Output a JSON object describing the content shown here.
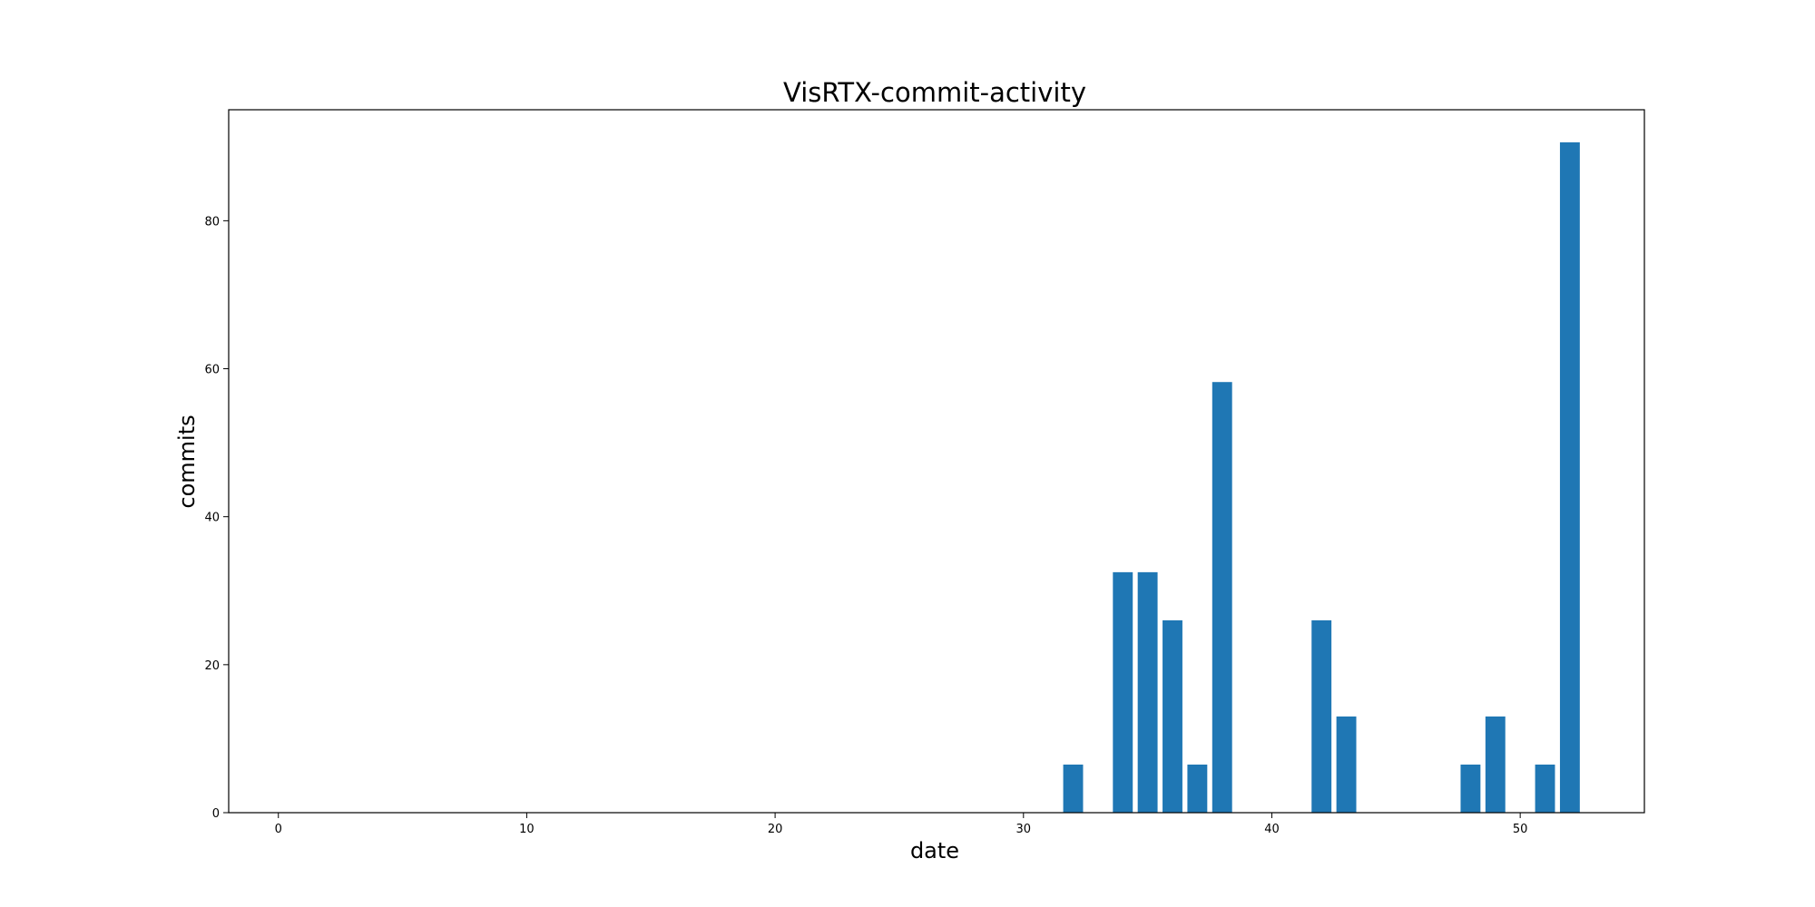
{
  "chart_data": {
    "type": "bar",
    "title": "VisRTX-commit-activity",
    "xlabel": "date",
    "ylabel": "commits",
    "x": [
      32,
      34,
      35,
      36,
      37,
      38,
      42,
      43,
      48,
      49,
      51,
      52
    ],
    "values": [
      6.5,
      32.5,
      32.5,
      26,
      6.5,
      58.2,
      26,
      13,
      6.5,
      13,
      6.5,
      90.6
    ],
    "xlim": [
      -2,
      55
    ],
    "ylim": [
      0,
      95
    ],
    "xticks": [
      0,
      10,
      20,
      30,
      40,
      50
    ],
    "yticks": [
      0,
      20,
      40,
      60,
      80
    ],
    "bar_color": "#1f77b4",
    "grid": false,
    "legend": "none"
  }
}
